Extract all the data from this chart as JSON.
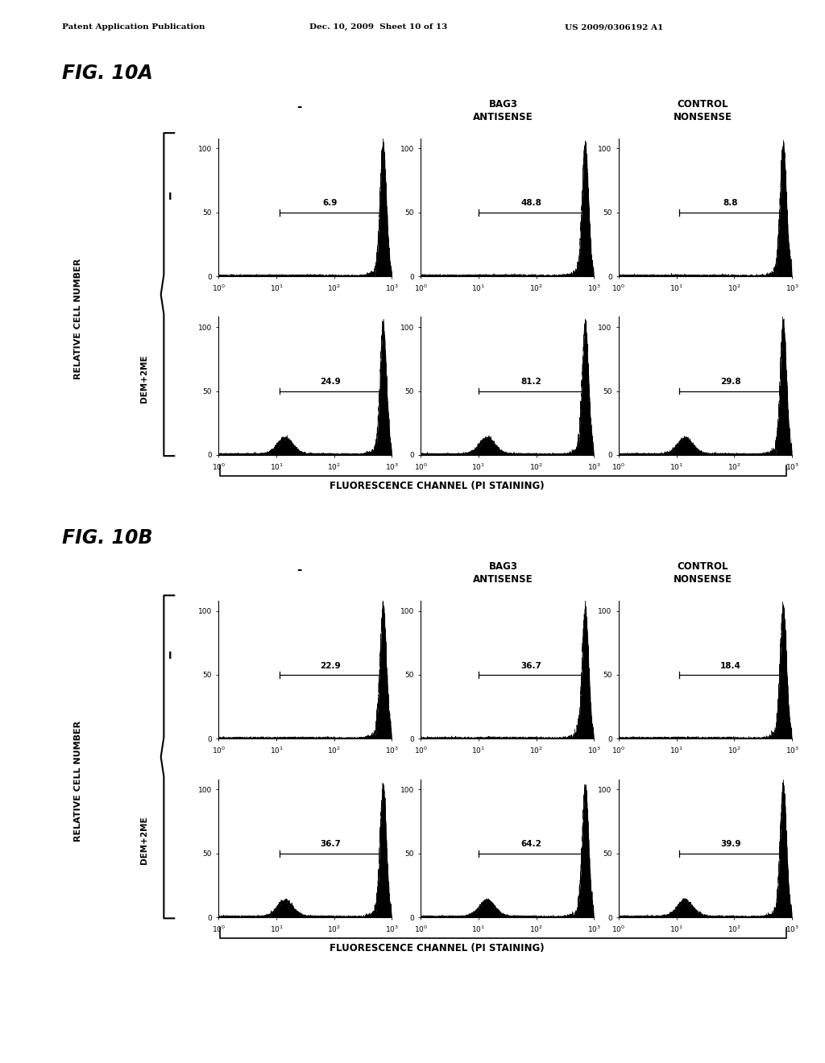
{
  "header_left": "Patent Application Publication",
  "header_mid": "Dec. 10, 2009  Sheet 10 of 13",
  "header_right": "US 2009/0306192 A1",
  "fig_A_label": "FIG. 10A",
  "fig_B_label": "FIG. 10B",
  "col_labels": [
    "-",
    "BAG3\nANTISENSE",
    "CONTROL\nNONSENSE"
  ],
  "row_labels_A": [
    "I",
    "DEM+2ME"
  ],
  "row_labels_B": [
    "I",
    "DEM+2ME"
  ],
  "values_A": [
    [
      "6.9",
      "48.8",
      "8.8"
    ],
    [
      "24.9",
      "81.2",
      "29.8"
    ]
  ],
  "values_B": [
    [
      "22.9",
      "36.7",
      "18.4"
    ],
    [
      "36.7",
      "64.2",
      "39.9"
    ]
  ],
  "xlabel": "FLUORESCENCE CHANNEL (PI STAINING)",
  "ylabel": "RELATIVE CELL NUMBER",
  "bg_color": "#ffffff",
  "text_color": "#000000"
}
